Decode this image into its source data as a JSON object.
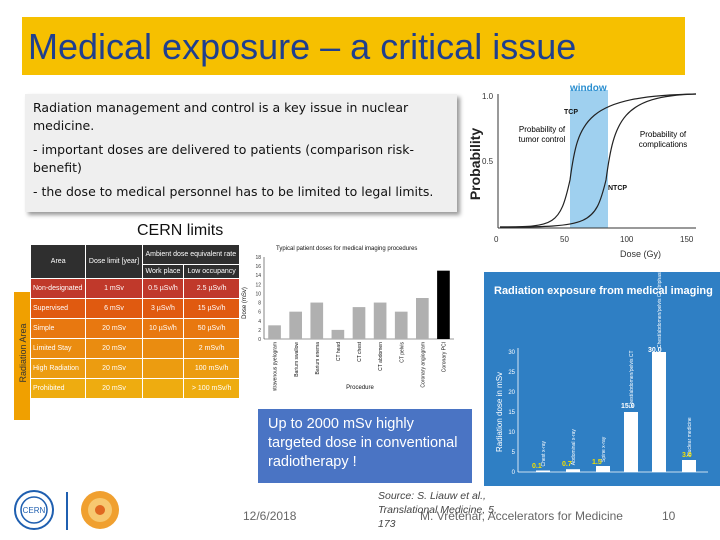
{
  "title": "Medical exposure – a critical issue",
  "textbox": {
    "p1": "Radiation management and control is a key issue in nuclear medicine.",
    "p2": "- important doses are delivered to patients (comparison risk-benefit)",
    "p3": "- the dose to medical personnel has to be limited to legal limits."
  },
  "cern_limits": "CERN limits",
  "radiation_table": {
    "side_label": "Radiation Area",
    "headers": [
      "Area",
      "Dose limit [year]",
      "Ambient dose equivalent rate",
      "Work place",
      "Low occupancy"
    ],
    "rows": [
      {
        "area": "Non-designated",
        "dose": "1 mSv",
        "work": "0.5 µSv/h",
        "low": "2.5 µSv/h",
        "color": "#c0392b"
      },
      {
        "area": "Supervised",
        "dose": "6 mSv",
        "work": "3 µSv/h",
        "low": "15 µSv/h",
        "color": "#e05a10"
      },
      {
        "area": "Simple",
        "dose": "20 mSv",
        "work": "10 µSv/h",
        "low": "50 µSv/h",
        "color": "#e87810"
      },
      {
        "area": "Limited Stay",
        "dose": "20 mSv",
        "work": "",
        "low": "2 mSv/h",
        "color": "#ea8c10"
      },
      {
        "area": "High Radiation",
        "dose": "20 mSv",
        "work": "",
        "low": "100 mSv/h",
        "color": "#ec9c10"
      },
      {
        "area": "Prohibited",
        "dose": "20 mSv",
        "work": "",
        "low": "> 100 mSv/h",
        "color": "#eeac10"
      }
    ]
  },
  "imaging_chart": {
    "title": "Typical patient doses for medical imaging procedures",
    "ylabel": "Dose (mSv)",
    "xlabel": "Procedure",
    "yticks": [
      "0",
      "2",
      "4",
      "6",
      "8",
      "10",
      "12",
      "14",
      "16",
      "18"
    ]
  },
  "callout": "Up to 2000 mSv highly targeted dose in conventional radiotherapy !",
  "prob_chart": {
    "window_label": "window",
    "ylabel": "Probability",
    "xlabel": "Dose (Gy)",
    "yticks": [
      "1.0",
      "0.5",
      "0"
    ],
    "xticks": [
      "0",
      "50",
      "100",
      "150"
    ],
    "tcp": "TCP",
    "ntcp": "NTCP",
    "tumor_label": "Probability of tumor control",
    "comp_label": "Probability of complications"
  },
  "exposure_panel": {
    "title": "Radiation exposure from medical imaging",
    "ylabel": "Radiation dose in mSv",
    "top_value": "30.0",
    "mid_value": "15.0",
    "v1": "0.1",
    "v2": "0.7",
    "v3": "1.5",
    "v4": "3.0"
  },
  "footer": {
    "date": "12/6/2018",
    "source": "Source: S. Liauw et al., Translational Medicine, 5, 173",
    "author": "M. Vretenar, Accelerators for Medicine",
    "page": "10"
  },
  "chart_data": [
    {
      "type": "bar",
      "title": "Typical patient doses for medical imaging procedures",
      "xlabel": "Procedure",
      "ylabel": "Dose (mSv)",
      "ylim": [
        0,
        18
      ],
      "categories": [
        "Intravenous pyelogram",
        "Barium swallow",
        "Barium enema",
        "CT head",
        "CT chest",
        "CT abdomen",
        "CT pelvis",
        "Coronary angiogram",
        "Coronary PCI"
      ],
      "values": [
        3,
        6,
        8,
        2,
        7,
        8,
        6,
        9,
        15
      ],
      "colors": [
        "#b0b0b0",
        "#b0b0b0",
        "#b0b0b0",
        "#b0b0b0",
        "#b0b0b0",
        "#b0b0b0",
        "#b0b0b0",
        "#b0b0b0",
        "#000000"
      ]
    },
    {
      "type": "bar",
      "title": "Radiation exposure from medical imaging",
      "ylabel": "Radiation dose in mSv",
      "ylim": [
        0,
        30
      ],
      "categories": [
        "Chest x-ray",
        "Abdominal x-ray",
        "Spine x-ray",
        "Chest/abdomen/pelvis CT",
        "Chest/abdomen/pelvis CT (triphasic)",
        "Nuclear medicine"
      ],
      "values": [
        0.1,
        0.7,
        1.5,
        15.0,
        30.0,
        3.0
      ]
    }
  ]
}
